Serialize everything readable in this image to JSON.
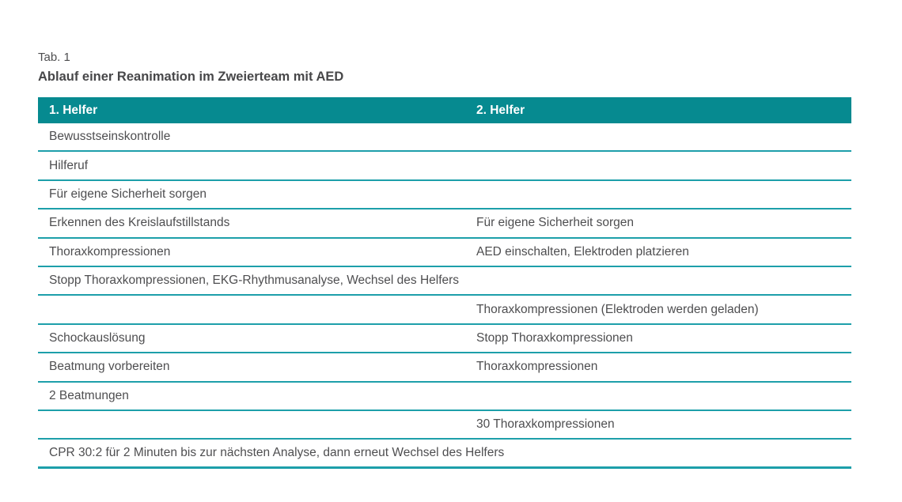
{
  "caption": {
    "label": "Tab. 1",
    "title": "Ablauf einer Reanimation im Zweierteam mit AED"
  },
  "table": {
    "columns": [
      "1. Helfer",
      "2. Helfer"
    ],
    "rows": [
      {
        "helper1": "Bewusstseinskontrolle",
        "helper2": "",
        "span": false
      },
      {
        "helper1": "Hilferuf",
        "helper2": "",
        "span": false
      },
      {
        "helper1": "Für eigene Sicherheit sorgen",
        "helper2": "",
        "span": false
      },
      {
        "helper1": "Erkennen des Kreislaufstillstands",
        "helper2": "Für eigene Sicherheit sorgen",
        "span": false
      },
      {
        "helper1": "Thoraxkompressionen",
        "helper2": "AED einschalten, Elektroden platzieren",
        "span": false
      },
      {
        "helper1": "Stopp Thoraxkompressionen, EKG-Rhythmusanalyse, Wechsel des Helfers",
        "helper2": "",
        "span": true
      },
      {
        "helper1": "",
        "helper2": "Thoraxkompressionen (Elektroden werden geladen)",
        "span": false
      },
      {
        "helper1": "Schockauslösung",
        "helper2": "Stopp Thoraxkompressionen",
        "span": false
      },
      {
        "helper1": "Beatmung vorbereiten",
        "helper2": "Thoraxkompressionen",
        "span": false
      },
      {
        "helper1": "2 Beatmungen",
        "helper2": "",
        "span": false
      },
      {
        "helper1": "",
        "helper2": "30 Thoraxkompressionen",
        "span": false
      },
      {
        "helper1": "CPR 30:2 für 2 Minuten bis zur nächsten Analyse, dann erneut Wechsel des Helfers",
        "helper2": "",
        "span": true
      }
    ]
  },
  "colors": {
    "header_bg": "#068a90",
    "header_text": "#ffffff",
    "separator": "#1d9faa",
    "text": "#4e4e50"
  }
}
